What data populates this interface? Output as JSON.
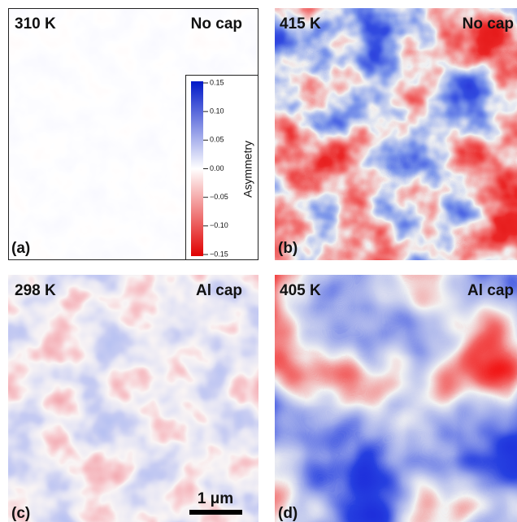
{
  "panels": [
    {
      "temperature": "310 K",
      "cap": "No cap",
      "label": "(a)"
    },
    {
      "temperature": "415 K",
      "cap": "No cap",
      "label": "(b)"
    },
    {
      "temperature": "298 K",
      "cap": "Al cap",
      "label": "(c)"
    },
    {
      "temperature": "405 K",
      "cap": "Al cap",
      "label": "(d)"
    }
  ],
  "colorbar": {
    "label": "Asymmetry",
    "ticks": [
      "0.15",
      "0.10",
      "0.05",
      "0.00",
      "−0.05",
      "−0.10",
      "−0.15"
    ]
  },
  "scale_bar": "1 μm"
}
